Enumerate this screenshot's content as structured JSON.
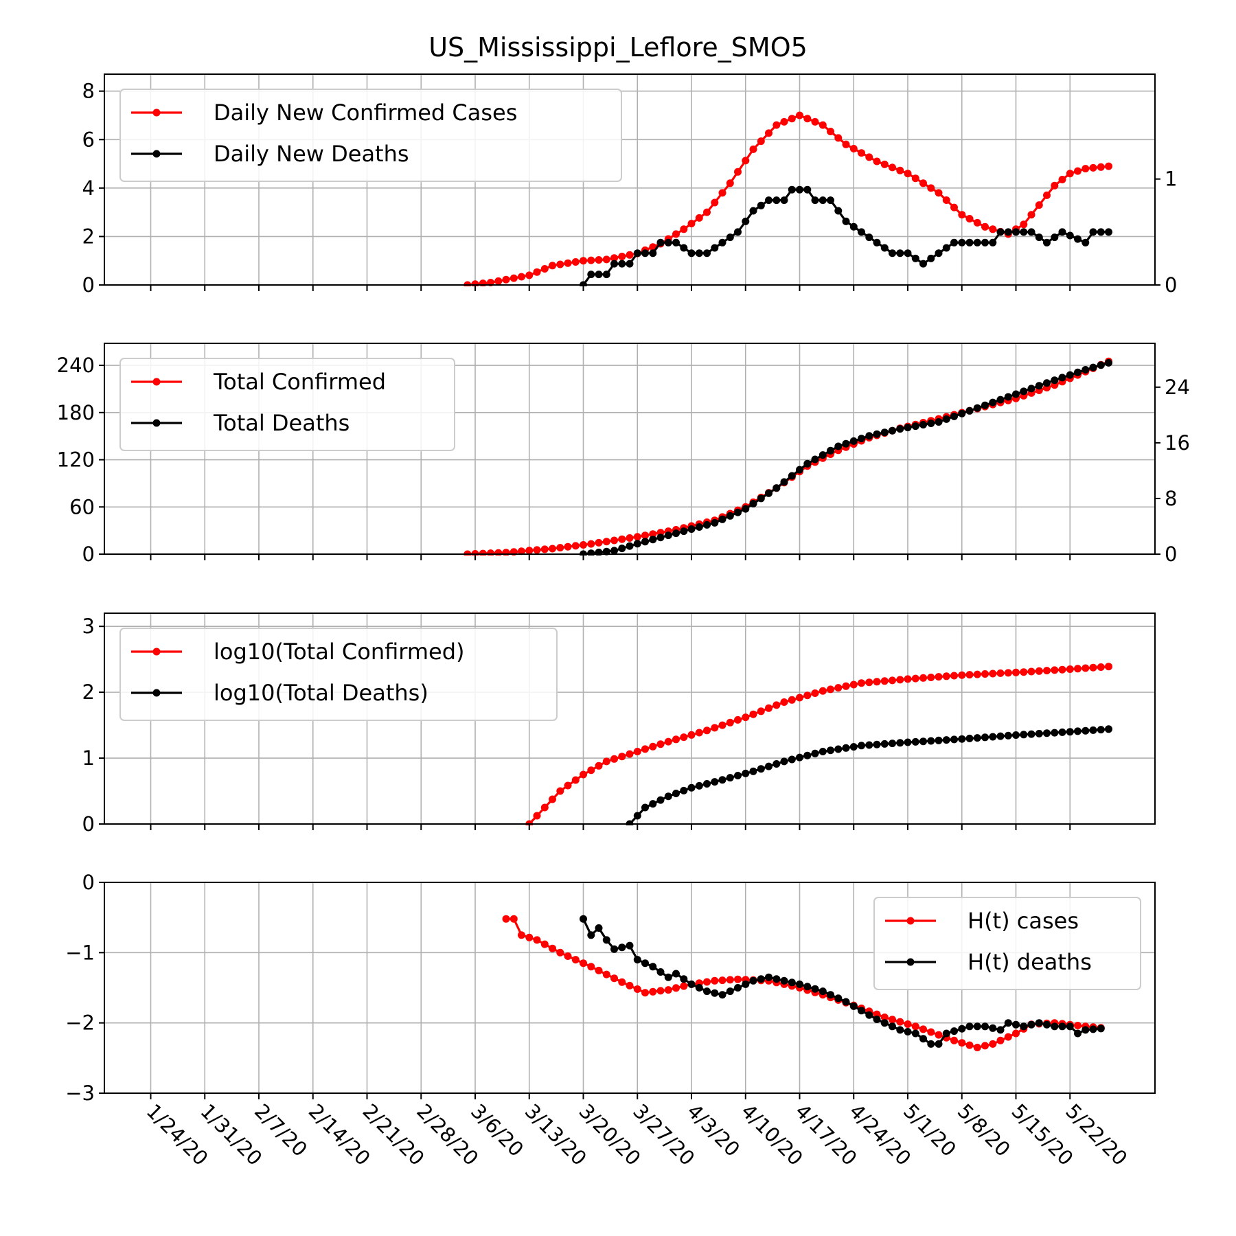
{
  "title": "US_Mississippi_Leflore_SMO5",
  "x_axis": {
    "dates": [
      "1/24/20",
      "1/31/20",
      "2/7/20",
      "2/14/20",
      "2/21/20",
      "2/28/20",
      "3/6/20",
      "3/13/20",
      "3/20/20",
      "3/27/20",
      "4/3/20",
      "4/10/20",
      "4/17/20",
      "4/24/20",
      "5/1/20",
      "5/8/20",
      "5/15/20",
      "5/22/20"
    ],
    "range": [
      "1/18/20",
      "6/2/20"
    ]
  },
  "colors": {
    "cases": "#ff0000",
    "deaths": "#000000"
  },
  "chart_data": [
    {
      "type": "line",
      "legend_position": "top-left",
      "left_axis": {
        "ylim": [
          0,
          8.7
        ],
        "ticks": [
          "0",
          "2",
          "4",
          "6",
          "8"
        ]
      },
      "right_axis": {
        "ylim": [
          0,
          1.99
        ],
        "ticks": [
          "0",
          "1"
        ]
      },
      "series": [
        {
          "name": "Daily New Confirmed Cases",
          "color": "#ff0000",
          "axis": "left",
          "points": [
            [
              "3/5/20",
              0
            ],
            [
              "3/8/20",
              0.1
            ],
            [
              "3/13/20",
              0.4
            ],
            [
              "3/16/20",
              0.8
            ],
            [
              "3/20/20",
              1.0
            ],
            [
              "3/23/20",
              1.05
            ],
            [
              "3/27/20",
              1.3
            ],
            [
              "3/30/20",
              1.7
            ],
            [
              "4/2/20",
              2.3
            ],
            [
              "4/5/20",
              3.0
            ],
            [
              "4/8/20",
              4.2
            ],
            [
              "4/11/20",
              5.6
            ],
            [
              "4/14/20",
              6.6
            ],
            [
              "4/17/20",
              7.0
            ],
            [
              "4/20/20",
              6.6
            ],
            [
              "4/23/20",
              5.8
            ],
            [
              "4/27/20",
              5.1
            ],
            [
              "5/1/20",
              4.6
            ],
            [
              "5/5/20",
              3.8
            ],
            [
              "5/8/20",
              2.9
            ],
            [
              "5/11/20",
              2.4
            ],
            [
              "5/14/20",
              2.1
            ],
            [
              "5/16/20",
              2.5
            ],
            [
              "5/18/20",
              3.3
            ],
            [
              "5/20/20",
              4.1
            ],
            [
              "5/22/20",
              4.6
            ],
            [
              "5/24/20",
              4.8
            ],
            [
              "5/27/20",
              4.9
            ]
          ]
        },
        {
          "name": "Daily New Deaths",
          "color": "#000000",
          "axis": "right",
          "points": [
            [
              "3/20/20",
              0
            ],
            [
              "3/21/20",
              0.1
            ],
            [
              "3/23/20",
              0.1
            ],
            [
              "3/24/20",
              0.2
            ],
            [
              "3/26/20",
              0.2
            ],
            [
              "3/27/20",
              0.3
            ],
            [
              "3/29/20",
              0.3
            ],
            [
              "3/30/20",
              0.4
            ],
            [
              "4/1/20",
              0.4
            ],
            [
              "4/3/20",
              0.3
            ],
            [
              "4/5/20",
              0.3
            ],
            [
              "4/7/20",
              0.4
            ],
            [
              "4/9/20",
              0.5
            ],
            [
              "4/11/20",
              0.7
            ],
            [
              "4/13/20",
              0.8
            ],
            [
              "4/15/20",
              0.8
            ],
            [
              "4/16/20",
              0.9
            ],
            [
              "4/18/20",
              0.9
            ],
            [
              "4/19/20",
              0.8
            ],
            [
              "4/21/20",
              0.8
            ],
            [
              "4/23/20",
              0.6
            ],
            [
              "4/25/20",
              0.5
            ],
            [
              "4/27/20",
              0.4
            ],
            [
              "4/29/20",
              0.3
            ],
            [
              "5/1/20",
              0.3
            ],
            [
              "5/3/20",
              0.2
            ],
            [
              "5/5/20",
              0.3
            ],
            [
              "5/7/20",
              0.4
            ],
            [
              "5/12/20",
              0.4
            ],
            [
              "5/13/20",
              0.5
            ],
            [
              "5/17/20",
              0.5
            ],
            [
              "5/19/20",
              0.4
            ],
            [
              "5/21/20",
              0.5
            ],
            [
              "5/24/20",
              0.4
            ],
            [
              "5/25/20",
              0.5
            ],
            [
              "5/27/20",
              0.5
            ]
          ]
        }
      ]
    },
    {
      "type": "line",
      "legend_position": "top-left",
      "left_axis": {
        "ylim": [
          0,
          268
        ],
        "ticks": [
          "0",
          "60",
          "120",
          "180",
          "240"
        ]
      },
      "right_axis": {
        "ylim": [
          0,
          30.3
        ],
        "ticks": [
          "0",
          "8",
          "16",
          "24"
        ]
      },
      "series": [
        {
          "name": "Total Confirmed",
          "color": "#ff0000",
          "axis": "left",
          "points": [
            [
              "3/5/20",
              0
            ],
            [
              "3/10/20",
              2
            ],
            [
              "3/16/20",
              7
            ],
            [
              "3/21/20",
              13
            ],
            [
              "3/27/20",
              22
            ],
            [
              "4/1/20",
              31
            ],
            [
              "4/6/20",
              43
            ],
            [
              "4/10/20",
              60
            ],
            [
              "4/14/20",
              84
            ],
            [
              "4/18/20",
              112
            ],
            [
              "4/22/20",
              132
            ],
            [
              "4/26/20",
              148
            ],
            [
              "4/30/20",
              160
            ],
            [
              "5/5/20",
              172
            ],
            [
              "5/10/20",
              185
            ],
            [
              "5/15/20",
              198
            ],
            [
              "5/20/20",
              215
            ],
            [
              "5/24/20",
              232
            ],
            [
              "5/27/20",
              245
            ]
          ]
        },
        {
          "name": "Total Deaths",
          "color": "#000000",
          "axis": "right",
          "points": [
            [
              "3/20/20",
              0
            ],
            [
              "3/24/20",
              0.5
            ],
            [
              "3/27/20",
              1.5
            ],
            [
              "4/1/20",
              3
            ],
            [
              "4/6/20",
              4.5
            ],
            [
              "4/10/20",
              6.5
            ],
            [
              "4/14/20",
              9.5
            ],
            [
              "4/18/20",
              13
            ],
            [
              "4/22/20",
              15.5
            ],
            [
              "4/26/20",
              17
            ],
            [
              "4/30/20",
              18
            ],
            [
              "5/5/20",
              19
            ],
            [
              "5/10/20",
              21
            ],
            [
              "5/15/20",
              23
            ],
            [
              "5/20/20",
              25
            ],
            [
              "5/24/20",
              26.5
            ],
            [
              "5/27/20",
              27.5
            ]
          ]
        }
      ]
    },
    {
      "type": "line",
      "legend_position": "top-left",
      "left_axis": {
        "ylim": [
          0,
          3.2
        ],
        "ticks": [
          "0",
          "1",
          "2",
          "3"
        ]
      },
      "series": [
        {
          "name": "log10(Total Confirmed)",
          "color": "#ff0000",
          "axis": "left",
          "points": [
            [
              "3/13/20",
              0
            ],
            [
              "3/15/20",
              0.25
            ],
            [
              "3/17/20",
              0.5
            ],
            [
              "3/20/20",
              0.75
            ],
            [
              "3/23/20",
              0.95
            ],
            [
              "3/27/20",
              1.1
            ],
            [
              "3/31/20",
              1.25
            ],
            [
              "4/5/20",
              1.42
            ],
            [
              "4/10/20",
              1.62
            ],
            [
              "4/15/20",
              1.85
            ],
            [
              "4/20/20",
              2.02
            ],
            [
              "4/25/20",
              2.14
            ],
            [
              "5/1/20",
              2.2
            ],
            [
              "5/8/20",
              2.26
            ],
            [
              "5/15/20",
              2.3
            ],
            [
              "5/22/20",
              2.35
            ],
            [
              "5/27/20",
              2.39
            ]
          ]
        },
        {
          "name": "log10(Total Deaths)",
          "color": "#000000",
          "axis": "left",
          "points": [
            [
              "3/26/20",
              0
            ],
            [
              "3/28/20",
              0.25
            ],
            [
              "3/31/20",
              0.42
            ],
            [
              "4/3/20",
              0.55
            ],
            [
              "4/7/20",
              0.67
            ],
            [
              "4/11/20",
              0.8
            ],
            [
              "4/15/20",
              0.95
            ],
            [
              "4/20/20",
              1.1
            ],
            [
              "4/25/20",
              1.19
            ],
            [
              "5/1/20",
              1.24
            ],
            [
              "5/8/20",
              1.29
            ],
            [
              "5/15/20",
              1.35
            ],
            [
              "5/22/20",
              1.4
            ],
            [
              "5/27/20",
              1.44
            ]
          ]
        }
      ]
    },
    {
      "type": "line",
      "legend_position": "top-right",
      "left_axis": {
        "ylim": [
          -3,
          0
        ],
        "ticks": [
          "−3",
          "−2",
          "−1",
          "0"
        ]
      },
      "series": [
        {
          "name": "H(t) cases",
          "color": "#ff0000",
          "axis": "left",
          "points": [
            [
              "3/10/20",
              -0.52
            ],
            [
              "3/11/20",
              -0.52
            ],
            [
              "3/12/20",
              -0.75
            ],
            [
              "3/14/20",
              -0.82
            ],
            [
              "3/17/20",
              -1.0
            ],
            [
              "3/21/20",
              -1.2
            ],
            [
              "3/25/20",
              -1.42
            ],
            [
              "3/28/20",
              -1.57
            ],
            [
              "3/31/20",
              -1.53
            ],
            [
              "4/3/20",
              -1.45
            ],
            [
              "4/6/20",
              -1.4
            ],
            [
              "4/9/20",
              -1.38
            ],
            [
              "4/13/20",
              -1.4
            ],
            [
              "4/17/20",
              -1.5
            ],
            [
              "4/20/20",
              -1.6
            ],
            [
              "4/24/20",
              -1.75
            ],
            [
              "4/28/20",
              -1.92
            ],
            [
              "5/2/20",
              -2.05
            ],
            [
              "5/7/20",
              -2.25
            ],
            [
              "5/10/20",
              -2.35
            ],
            [
              "5/12/20",
              -2.3
            ],
            [
              "5/15/20",
              -2.15
            ],
            [
              "5/17/20",
              -2.02
            ],
            [
              "5/20/20",
              -2.0
            ],
            [
              "5/24/20",
              -2.05
            ],
            [
              "5/26/20",
              -2.07
            ]
          ]
        },
        {
          "name": "H(t) deaths",
          "color": "#000000",
          "axis": "left",
          "points": [
            [
              "3/20/20",
              -0.52
            ],
            [
              "3/21/20",
              -0.75
            ],
            [
              "3/22/20",
              -0.65
            ],
            [
              "3/23/20",
              -0.82
            ],
            [
              "3/24/20",
              -0.95
            ],
            [
              "3/26/20",
              -0.9
            ],
            [
              "3/27/20",
              -1.1
            ],
            [
              "3/29/20",
              -1.2
            ],
            [
              "3/31/20",
              -1.35
            ],
            [
              "4/1/20",
              -1.3
            ],
            [
              "4/3/20",
              -1.45
            ],
            [
              "4/5/20",
              -1.55
            ],
            [
              "4/7/20",
              -1.6
            ],
            [
              "4/9/20",
              -1.5
            ],
            [
              "4/11/20",
              -1.4
            ],
            [
              "4/13/20",
              -1.35
            ],
            [
              "4/17/20",
              -1.45
            ],
            [
              "4/20/20",
              -1.55
            ],
            [
              "4/23/20",
              -1.7
            ],
            [
              "4/27/20",
              -1.95
            ],
            [
              "4/30/20",
              -2.1
            ],
            [
              "5/2/20",
              -2.15
            ],
            [
              "5/4/20",
              -2.3
            ],
            [
              "5/5/20",
              -2.3
            ],
            [
              "5/6/20",
              -2.15
            ],
            [
              "5/9/20",
              -2.05
            ],
            [
              "5/11/20",
              -2.05
            ],
            [
              "5/13/20",
              -2.1
            ],
            [
              "5/14/20",
              -2.0
            ],
            [
              "5/16/20",
              -2.05
            ],
            [
              "5/18/20",
              -2.0
            ],
            [
              "5/20/20",
              -2.05
            ],
            [
              "5/22/20",
              -2.05
            ],
            [
              "5/23/20",
              -2.15
            ],
            [
              "5/24/20",
              -2.1
            ],
            [
              "5/26/20",
              -2.08
            ]
          ]
        }
      ]
    }
  ]
}
